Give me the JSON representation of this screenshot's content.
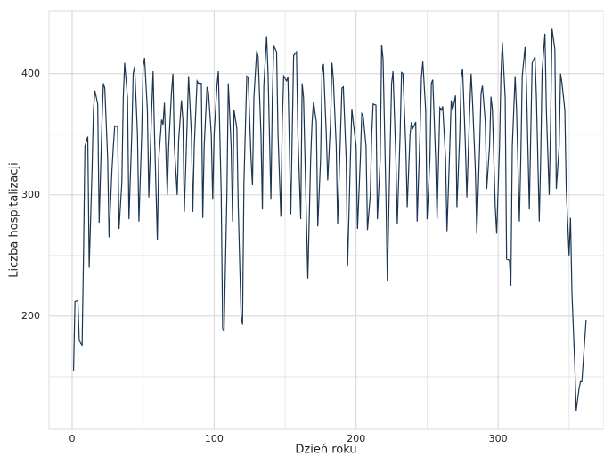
{
  "chart_data": {
    "type": "line",
    "xlabel": "Dzień roku",
    "ylabel": "Liczba hospitalizacji",
    "color": "#1b3552",
    "x": [
      1,
      2,
      4,
      5,
      7,
      8,
      9,
      11,
      12,
      14,
      15,
      16,
      18,
      19,
      21,
      22,
      23,
      25,
      26,
      28,
      29,
      30,
      32,
      33,
      35,
      36,
      37,
      39,
      40,
      42,
      43,
      44,
      46,
      47,
      49,
      50,
      51,
      53,
      54,
      56,
      57,
      58,
      60,
      61,
      63,
      64,
      65,
      67,
      68,
      70,
      71,
      72,
      74,
      75,
      77,
      78,
      79,
      81,
      82,
      84,
      85,
      86,
      88,
      89,
      91,
      92,
      93,
      95,
      96,
      98,
      99,
      100,
      102,
      103,
      105,
      106,
      107,
      109,
      110,
      112,
      113,
      114,
      116,
      117,
      119,
      120,
      121,
      123,
      124,
      126,
      127,
      128,
      130,
      131,
      133,
      134,
      135,
      137,
      138,
      140,
      141,
      142,
      144,
      145,
      147,
      148,
      149,
      151,
      152,
      154,
      155,
      156,
      158,
      159,
      161,
      162,
      163,
      165,
      166,
      168,
      169,
      170,
      172,
      173,
      175,
      176,
      177,
      179,
      180,
      182,
      183,
      184,
      186,
      187,
      189,
      190,
      191,
      193,
      194,
      196,
      197,
      198,
      200,
      201,
      203,
      204,
      205,
      207,
      208,
      210,
      211,
      212,
      214,
      215,
      217,
      218,
      219,
      221,
      222,
      224,
      225,
      226,
      228,
      229,
      231,
      232,
      233,
      235,
      236,
      238,
      239,
      240,
      242,
      243,
      245,
      246,
      247,
      249,
      250,
      252,
      253,
      254,
      256,
      257,
      259,
      260,
      261,
      263,
      264,
      266,
      267,
      268,
      270,
      271,
      273,
      274,
      275,
      277,
      278,
      280,
      281,
      282,
      284,
      285,
      287,
      288,
      289,
      291,
      292,
      294,
      295,
      296,
      298,
      299,
      301,
      302,
      303,
      305,
      306,
      308,
      309,
      310,
      312,
      313,
      315,
      316,
      317,
      319,
      320,
      322,
      323,
      324,
      326,
      327,
      329,
      330,
      331,
      333,
      334,
      336,
      337,
      338,
      340,
      341,
      343,
      344,
      345,
      347,
      348,
      350,
      351,
      352,
      354,
      355,
      357,
      358,
      359,
      361,
      362
    ],
    "values": [
      155,
      212,
      213,
      180,
      176,
      250,
      340,
      348,
      240,
      320,
      370,
      386,
      375,
      277,
      360,
      392,
      388,
      330,
      265,
      320,
      340,
      357,
      356,
      272,
      310,
      380,
      409,
      380,
      280,
      350,
      400,
      406,
      350,
      278,
      350,
      406,
      413,
      370,
      298,
      370,
      402,
      350,
      263,
      330,
      362,
      358,
      376,
      300,
      340,
      385,
      400,
      340,
      300,
      345,
      378,
      362,
      286,
      360,
      398,
      350,
      286,
      340,
      394,
      392,
      392,
      281,
      340,
      389,
      385,
      350,
      296,
      350,
      390,
      402,
      300,
      190,
      187,
      300,
      392,
      340,
      278,
      370,
      355,
      290,
      200,
      193,
      310,
      398,
      397,
      330,
      308,
      380,
      419,
      414,
      350,
      288,
      390,
      431,
      400,
      296,
      380,
      423,
      418,
      350,
      282,
      360,
      398,
      394,
      397,
      284,
      350,
      415,
      418,
      350,
      280,
      392,
      380,
      280,
      231,
      330,
      360,
      377,
      360,
      274,
      330,
      400,
      408,
      350,
      312,
      360,
      409,
      395,
      340,
      276,
      350,
      388,
      389,
      330,
      241,
      330,
      371,
      360,
      340,
      272,
      330,
      367,
      365,
      340,
      271,
      300,
      350,
      375,
      374,
      280,
      330,
      424,
      412,
      300,
      229,
      340,
      392,
      402,
      330,
      276,
      350,
      401,
      400,
      340,
      290,
      350,
      360,
      355,
      360,
      278,
      350,
      397,
      410,
      370,
      280,
      330,
      392,
      395,
      330,
      280,
      372,
      370,
      373,
      330,
      270,
      340,
      378,
      370,
      382,
      290,
      350,
      397,
      404,
      340,
      298,
      370,
      400,
      377,
      320,
      268,
      340,
      384,
      390,
      360,
      305,
      340,
      381,
      370,
      290,
      268,
      340,
      398,
      426,
      380,
      247,
      246,
      225,
      340,
      398,
      370,
      278,
      330,
      398,
      422,
      390,
      288,
      350,
      409,
      414,
      380,
      278,
      330,
      402,
      433,
      370,
      300,
      360,
      437,
      420,
      305,
      340,
      400,
      392,
      370,
      305,
      250,
      281,
      220,
      160,
      122,
      140,
      146,
      146,
      180,
      197
    ],
    "xlim": [
      -16.3,
      374.6
    ],
    "ylim": [
      106.6,
      452
    ],
    "xticks": [
      0,
      100,
      200,
      300
    ],
    "yticks": [
      200,
      300,
      400
    ],
    "xgrid_minor": [
      50,
      150,
      250,
      350
    ],
    "ygrid_minor": [
      150,
      250,
      350
    ],
    "grid": true
  }
}
